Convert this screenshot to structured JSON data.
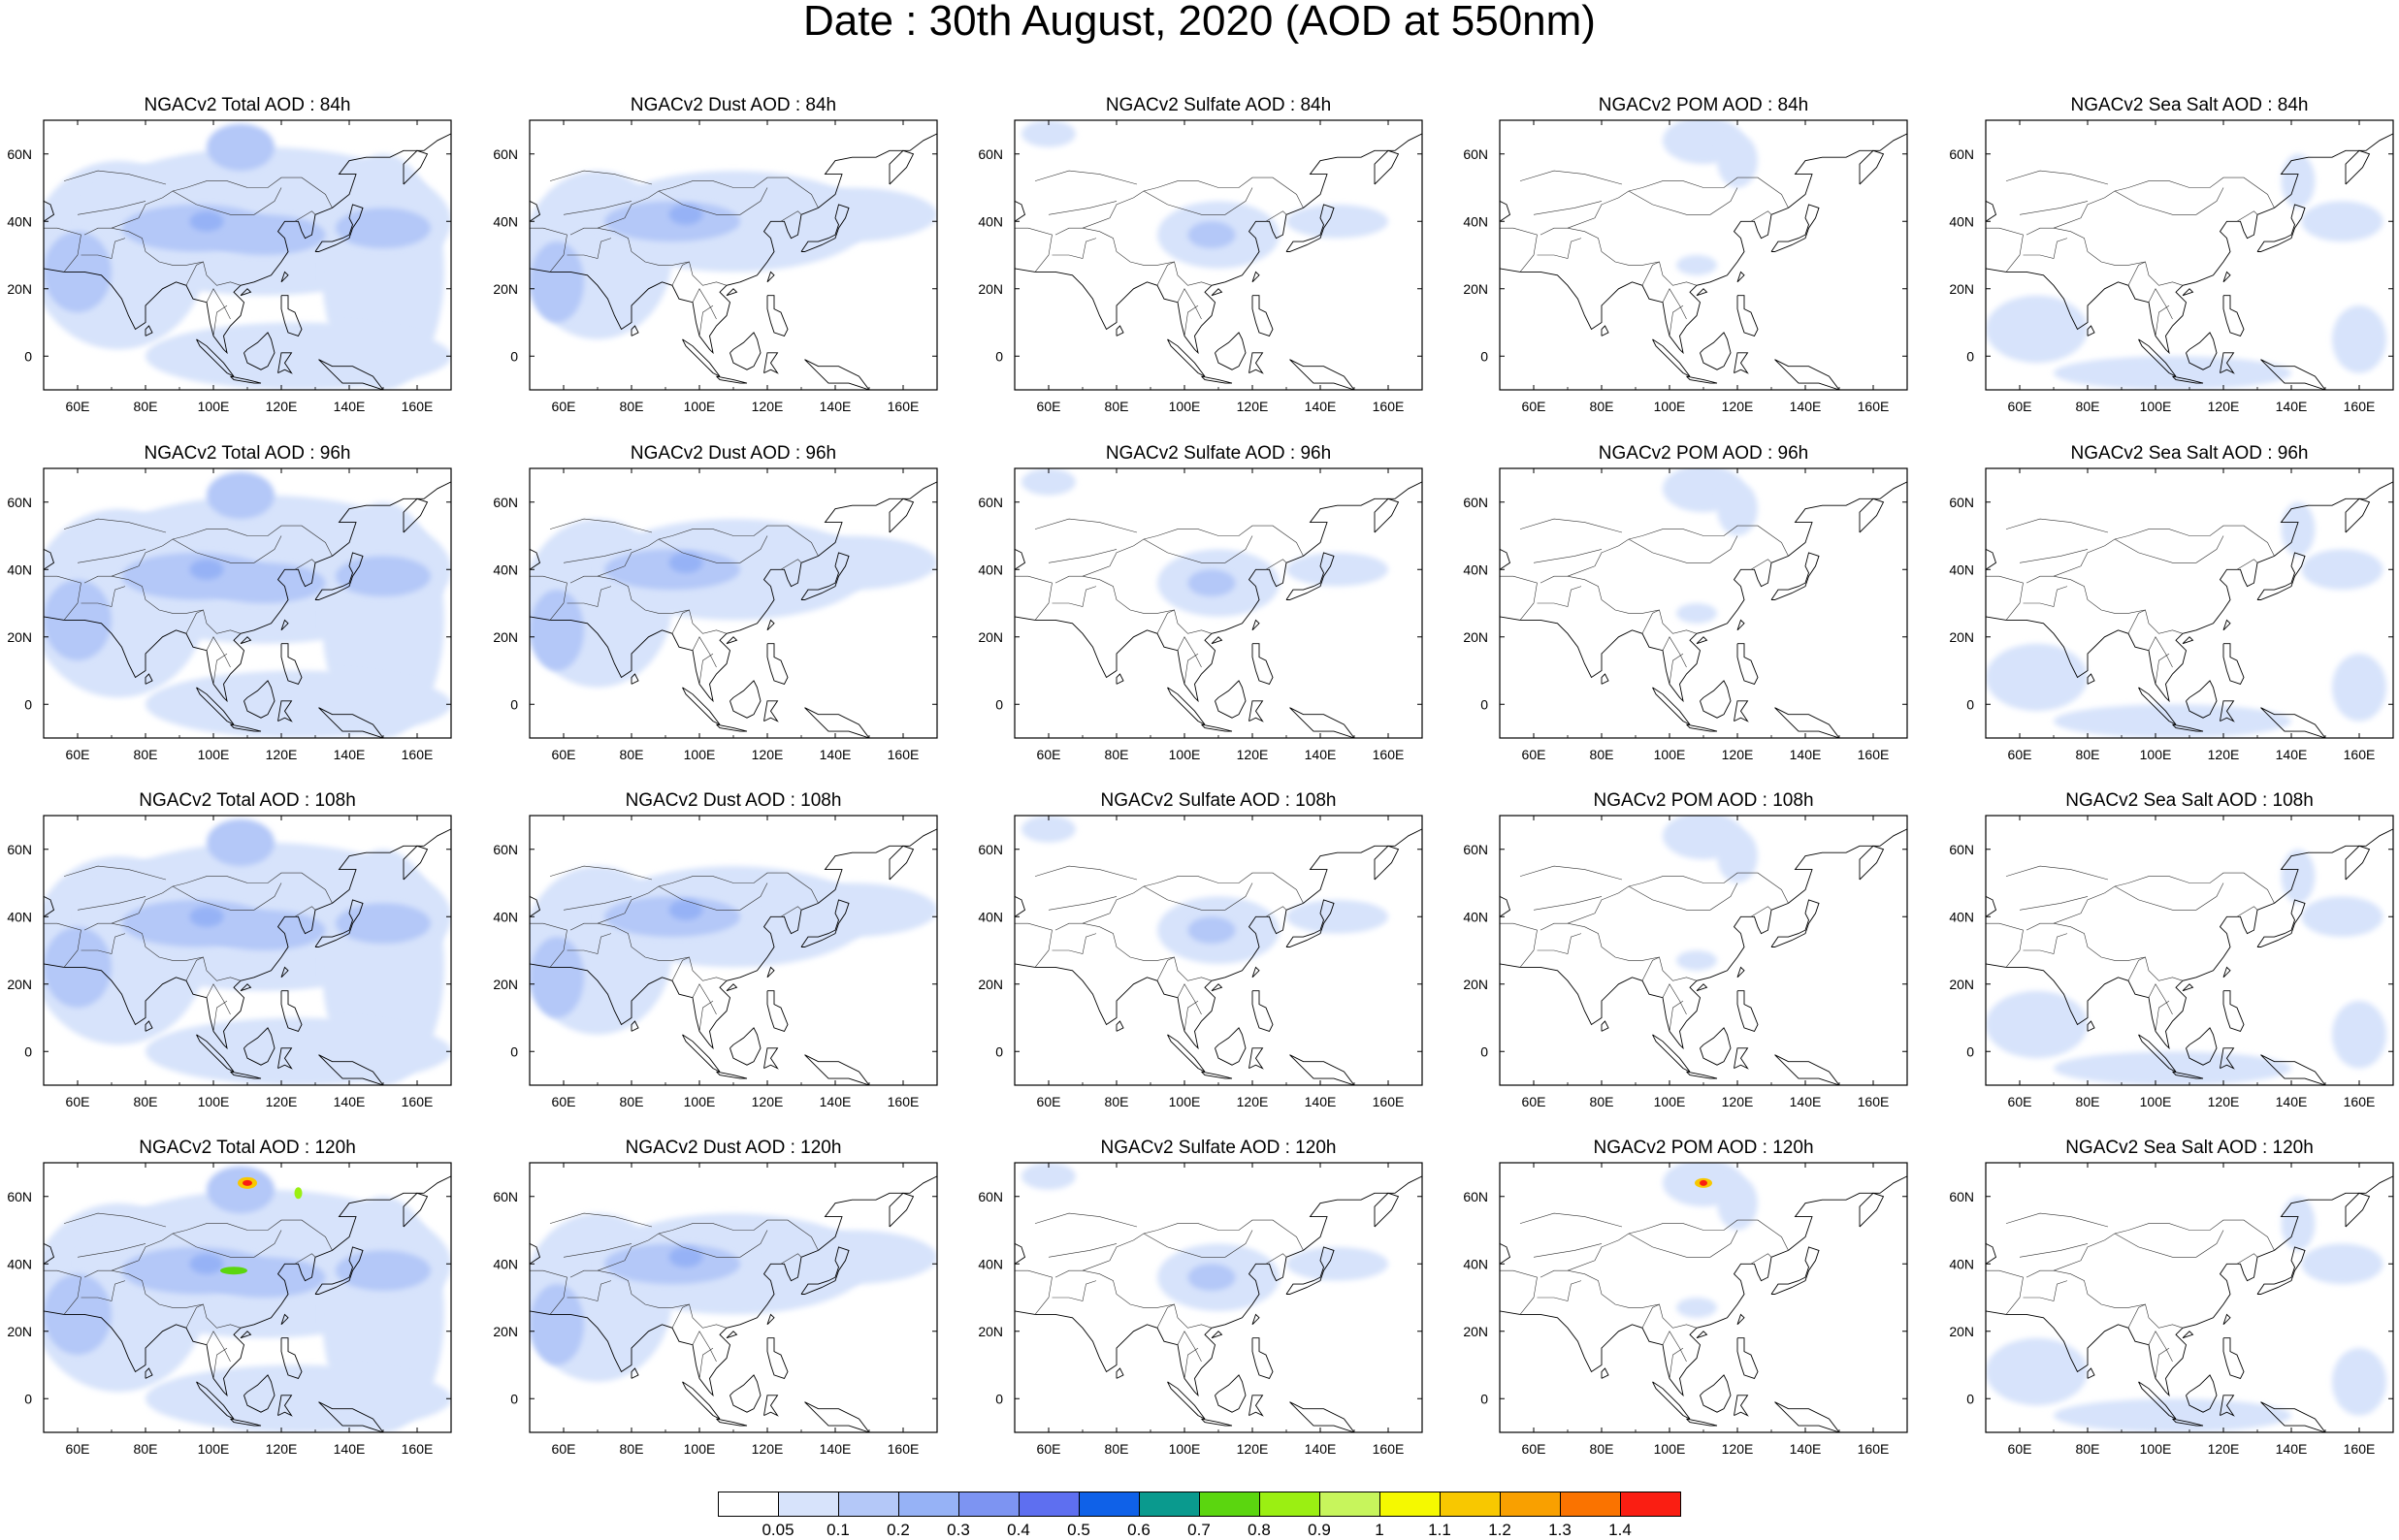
{
  "title": "Date : 30th August, 2020 (AOD at 550nm)",
  "axes": {
    "lon_ticks": [
      "60E",
      "80E",
      "100E",
      "120E",
      "140E",
      "160E"
    ],
    "lon_values": [
      60,
      80,
      100,
      120,
      140,
      160
    ],
    "lat_ticks": [
      "60N",
      "40N",
      "20N",
      "0"
    ],
    "lat_values": [
      60,
      40,
      20,
      0
    ],
    "lon_range": [
      50,
      170
    ],
    "lat_range": [
      -10,
      70
    ]
  },
  "rows": [
    {
      "lead": "84h",
      "panels": [
        {
          "title": "NGACv2 Total AOD : 84h",
          "species": "total"
        },
        {
          "title": "NGACv2 Dust AOD : 84h",
          "species": "dust"
        },
        {
          "title": "NGACv2 Sulfate AOD : 84h",
          "species": "sulfate"
        },
        {
          "title": "NGACv2 POM AOD : 84h",
          "species": "pom"
        },
        {
          "title": "NGACv2 Sea Salt AOD : 84h",
          "species": "seasalt"
        }
      ]
    },
    {
      "lead": "96h",
      "panels": [
        {
          "title": "NGACv2 Total AOD : 96h",
          "species": "total"
        },
        {
          "title": "NGACv2 Dust AOD : 96h",
          "species": "dust"
        },
        {
          "title": "NGACv2 Sulfate AOD : 96h",
          "species": "sulfate"
        },
        {
          "title": "NGACv2 POM AOD : 96h",
          "species": "pom"
        },
        {
          "title": "NGACv2 Sea Salt AOD : 96h",
          "species": "seasalt"
        }
      ]
    },
    {
      "lead": "108h",
      "panels": [
        {
          "title": "NGACv2 Total AOD : 108h",
          "species": "total"
        },
        {
          "title": "NGACv2 Dust AOD : 108h",
          "species": "dust"
        },
        {
          "title": "NGACv2 Sulfate AOD : 108h",
          "species": "sulfate"
        },
        {
          "title": "NGACv2 POM AOD : 108h",
          "species": "pom"
        },
        {
          "title": "NGACv2 Sea Salt AOD : 108h",
          "species": "seasalt"
        }
      ]
    },
    {
      "lead": "120h",
      "panels": [
        {
          "title": "NGACv2 Total AOD : 120h",
          "species": "total"
        },
        {
          "title": "NGACv2 Dust AOD : 120h",
          "species": "dust"
        },
        {
          "title": "NGACv2 Sulfate AOD : 120h",
          "species": "sulfate"
        },
        {
          "title": "NGACv2 POM AOD : 120h",
          "species": "pom"
        },
        {
          "title": "NGACv2 Sea Salt  AOD : 120h",
          "species": "seasalt"
        }
      ]
    }
  ],
  "colorbar": {
    "labels": [
      "0.05",
      "0.1",
      "0.2",
      "0.3",
      "0.4",
      "0.5",
      "0.6",
      "0.7",
      "0.8",
      "0.9",
      "1",
      "1.1",
      "1.2",
      "1.3",
      "1.4"
    ],
    "colors": [
      "#ffffff",
      "#d7e3fb",
      "#b4c8f8",
      "#96b2f6",
      "#7d94f2",
      "#5e6ff0",
      "#0f61e8",
      "#0a9a8e",
      "#5bd60f",
      "#9bef12",
      "#c7f55c",
      "#f5f900",
      "#f8c800",
      "#f9a000",
      "#fa7300",
      "#fa1e12"
    ]
  },
  "aerosol_fields": {
    "total": [
      {
        "lon": 72,
        "lat": 30,
        "rx": 26,
        "ry": 28,
        "level": 1
      },
      {
        "lon": 115,
        "lat": 40,
        "rx": 55,
        "ry": 22,
        "level": 1
      },
      {
        "lon": 150,
        "lat": 25,
        "rx": 18,
        "ry": 35,
        "level": 1
      },
      {
        "lon": 125,
        "lat": 0,
        "rx": 45,
        "ry": 10,
        "level": 1
      },
      {
        "lon": 95,
        "lat": 38,
        "rx": 22,
        "ry": 7,
        "level": 2
      },
      {
        "lon": 115,
        "lat": 36,
        "rx": 18,
        "ry": 6,
        "level": 2
      },
      {
        "lon": 60,
        "lat": 25,
        "rx": 10,
        "ry": 12,
        "level": 2
      },
      {
        "lon": 108,
        "lat": 62,
        "rx": 10,
        "ry": 7,
        "level": 2
      },
      {
        "lon": 150,
        "lat": 38,
        "rx": 14,
        "ry": 6,
        "level": 2
      },
      {
        "lon": 98,
        "lat": 40,
        "rx": 5,
        "ry": 3,
        "level": 3
      }
    ],
    "dust": [
      {
        "lon": 70,
        "lat": 30,
        "rx": 22,
        "ry": 25,
        "level": 1
      },
      {
        "lon": 110,
        "lat": 40,
        "rx": 40,
        "ry": 15,
        "level": 1
      },
      {
        "lon": 145,
        "lat": 42,
        "rx": 25,
        "ry": 8,
        "level": 1
      },
      {
        "lon": 92,
        "lat": 40,
        "rx": 20,
        "ry": 6,
        "level": 2
      },
      {
        "lon": 58,
        "lat": 22,
        "rx": 8,
        "ry": 12,
        "level": 2
      },
      {
        "lon": 96,
        "lat": 42,
        "rx": 5,
        "ry": 3,
        "level": 3
      }
    ],
    "sulfate": [
      {
        "lon": 110,
        "lat": 36,
        "rx": 18,
        "ry": 10,
        "level": 1
      },
      {
        "lon": 145,
        "lat": 40,
        "rx": 15,
        "ry": 5,
        "level": 1
      },
      {
        "lon": 60,
        "lat": 66,
        "rx": 8,
        "ry": 4,
        "level": 1
      },
      {
        "lon": 108,
        "lat": 36,
        "rx": 7,
        "ry": 4,
        "level": 2
      }
    ],
    "pom": [
      {
        "lon": 110,
        "lat": 64,
        "rx": 12,
        "ry": 7,
        "level": 1
      },
      {
        "lon": 120,
        "lat": 58,
        "rx": 6,
        "ry": 8,
        "level": 1
      },
      {
        "lon": 108,
        "lat": 27,
        "rx": 6,
        "ry": 3,
        "level": 1
      }
    ],
    "seasalt": [
      {
        "lon": 65,
        "lat": 8,
        "rx": 15,
        "ry": 10,
        "level": 1
      },
      {
        "lon": 105,
        "lat": -5,
        "rx": 35,
        "ry": 5,
        "level": 1
      },
      {
        "lon": 155,
        "lat": 40,
        "rx": 12,
        "ry": 6,
        "level": 1
      },
      {
        "lon": 142,
        "lat": 52,
        "rx": 5,
        "ry": 8,
        "level": 1
      },
      {
        "lon": 160,
        "lat": 5,
        "rx": 8,
        "ry": 10,
        "level": 1
      }
    ]
  }
}
